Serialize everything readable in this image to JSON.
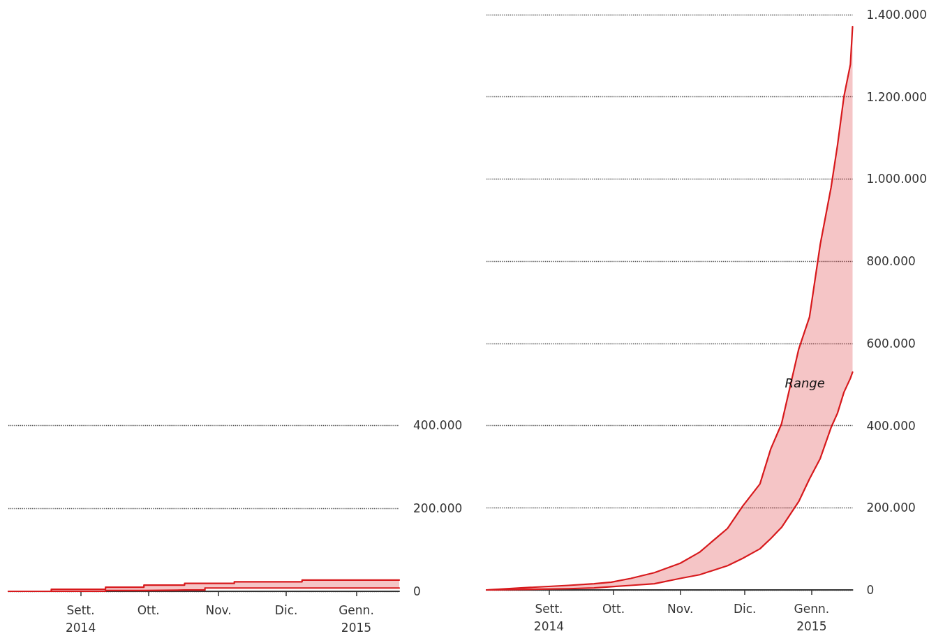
{
  "chart_data": [
    {
      "type": "step",
      "xlim": [
        "2014-07-31",
        "2015-01-20"
      ],
      "ylim": [
        0,
        400000
      ],
      "xticks": [
        {
          "value": "2014-09-01",
          "label": "Sett.\n2014"
        },
        {
          "value": "2014-10-01",
          "label": "Ott."
        },
        {
          "value": "2014-11-01",
          "label": "Nov."
        },
        {
          "value": "2014-12-01",
          "label": "Dic."
        },
        {
          "value": "2015-01-01",
          "label": "Genn.\n2015"
        }
      ],
      "yticks": [
        0,
        {
          "value": 200000,
          "label": "200.000"
        },
        {
          "value": 400000,
          "label": "400.000"
        }
      ],
      "grid": "y",
      "series": [
        {
          "color": "#d7191c",
          "x": [
            "2014-07-31",
            "2014-08-19",
            "2014-09-12",
            "2014-09-29",
            "2014-10-17",
            "2014-10-26",
            "2014-11-08",
            "2014-12-08",
            "2015-01-20"
          ],
          "values": [
            0,
            5000,
            10000,
            15000,
            19000,
            19000,
            23000,
            27000,
            27000
          ],
          "upper": [
            0,
            5000,
            10000,
            15000,
            19000,
            19000,
            23000,
            27000,
            27000
          ],
          "lower": [
            0,
            0,
            2000,
            3000,
            3000,
            8000,
            8000,
            8000,
            8000
          ]
        },
        {
          "color": "#d7191c",
          "x": [
            "2014-07-31",
            "2014-08-19",
            "2014-09-12",
            "2014-09-29",
            "2014-10-17",
            "2014-10-26",
            "2014-11-08",
            "2014-12-08",
            "2015-01-20"
          ],
          "values": [
            0,
            0,
            2000,
            3000,
            3000,
            8000,
            8000,
            8000,
            8000
          ]
        }
      ]
    },
    {
      "type": "line",
      "xlim": [
        "2014-08-03",
        "2015-01-20"
      ],
      "ylim": [
        0,
        1400000
      ],
      "xticks": [
        {
          "value": "2014-09-01",
          "label": "Sett.\n2014"
        },
        {
          "value": "2014-10-01",
          "label": "Ott."
        },
        {
          "value": "2014-11-01",
          "label": "Nov."
        },
        {
          "value": "2014-12-01",
          "label": "Dic."
        },
        {
          "value": "2015-01-01",
          "label": "Genn.\n2015"
        }
      ],
      "yticks": [
        0,
        {
          "value": 200000,
          "label": "200.000"
        },
        {
          "value": 400000,
          "label": "400.000"
        },
        {
          "value": 600000,
          "label": "600.000"
        },
        {
          "value": 800000,
          "label": "800.000"
        },
        {
          "value": 1000000,
          "label": "1.000.000"
        },
        {
          "value": 1200000,
          "label": "1.200.000"
        },
        {
          "value": 1400000,
          "label": "1.400.000"
        }
      ],
      "grid": "y",
      "annotations": [
        "Range"
      ],
      "series": [
        {
          "color": "#d7191c",
          "x": [
            "2014-08-03",
            "2014-08-19",
            "2014-09-10",
            "2014-09-22",
            "2014-09-30",
            "2014-10-09",
            "2014-10-20",
            "2014-11-01",
            "2014-11-10",
            "2014-11-23",
            "2014-11-30",
            "2014-12-08",
            "2014-12-13",
            "2014-12-18",
            "2014-12-26",
            "2014-12-31",
            "2015-01-05",
            "2015-01-10",
            "2015-01-13",
            "2015-01-16",
            "2015-01-19",
            "2015-01-20"
          ],
          "values": [
            0,
            5000,
            11000,
            15000,
            19000,
            28000,
            42000,
            65000,
            92000,
            150000,
            204000,
            258000,
            343000,
            404000,
            586000,
            664000,
            841000,
            979000,
            1082000,
            1201000,
            1279000,
            1371000
          ],
          "upper": [
            0,
            5000,
            11000,
            15000,
            19000,
            28000,
            42000,
            65000,
            92000,
            150000,
            204000,
            258000,
            343000,
            404000,
            586000,
            664000,
            841000,
            979000,
            1082000,
            1201000,
            1279000,
            1371000
          ],
          "lower": [
            0,
            1000,
            3000,
            5000,
            8000,
            11000,
            15000,
            28000,
            37000,
            59000,
            77000,
            100000,
            125000,
            152000,
            215000,
            270000,
            320000,
            395000,
            430000,
            481000,
            515000,
            530000
          ]
        },
        {
          "color": "#d7191c",
          "x": [
            "2014-08-03",
            "2014-08-19",
            "2014-09-10",
            "2014-09-22",
            "2014-09-30",
            "2014-10-09",
            "2014-10-20",
            "2014-11-01",
            "2014-11-10",
            "2014-11-23",
            "2014-11-30",
            "2014-12-08",
            "2014-12-13",
            "2014-12-18",
            "2014-12-26",
            "2014-12-31",
            "2015-01-05",
            "2015-01-10",
            "2015-01-13",
            "2015-01-16",
            "2015-01-19",
            "2015-01-20"
          ],
          "values": [
            0,
            1000,
            3000,
            5000,
            8000,
            11000,
            15000,
            28000,
            37000,
            59000,
            77000,
            100000,
            125000,
            152000,
            215000,
            270000,
            320000,
            395000,
            430000,
            481000,
            515000,
            530000
          ]
        }
      ]
    }
  ]
}
